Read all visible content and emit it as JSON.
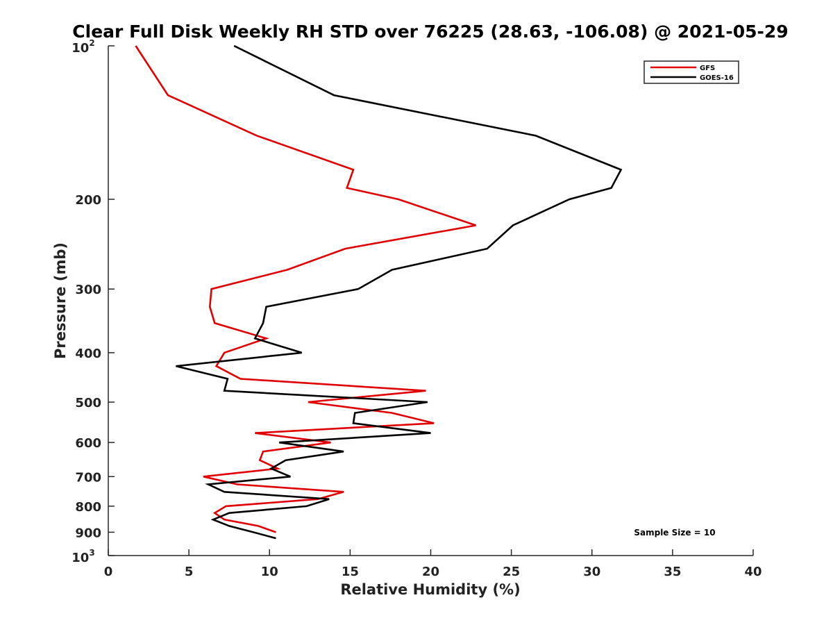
{
  "chart_data": {
    "type": "line",
    "title": "Clear Full Disk Weekly RH STD over 76225 (28.63, -106.08) @ 2021-05-29",
    "xlabel": "Relative Humidity (%)",
    "ylabel": "Pressure (mb)",
    "xlim": [
      0,
      40
    ],
    "ylim": [
      100,
      1000
    ],
    "y_scale": "log",
    "y_reversed": true,
    "x_ticks": [
      {
        "value": 0,
        "label": "0"
      },
      {
        "value": 5,
        "label": "5"
      },
      {
        "value": 10,
        "label": "10"
      },
      {
        "value": 15,
        "label": "15"
      },
      {
        "value": 20,
        "label": "20"
      },
      {
        "value": 25,
        "label": "25"
      },
      {
        "value": 30,
        "label": "30"
      },
      {
        "value": 35,
        "label": "35"
      },
      {
        "value": 40,
        "label": "40"
      }
    ],
    "y_ticks": [
      {
        "value": 100,
        "base": "10",
        "exp": "2"
      },
      {
        "value": 200,
        "label": "200"
      },
      {
        "value": 300,
        "label": "300"
      },
      {
        "value": 400,
        "label": "400"
      },
      {
        "value": 500,
        "label": "500"
      },
      {
        "value": 600,
        "label": "600"
      },
      {
        "value": 700,
        "label": "700"
      },
      {
        "value": 800,
        "label": "800"
      },
      {
        "value": 900,
        "label": "900"
      },
      {
        "value": 1000,
        "base": "10",
        "exp": "3"
      }
    ],
    "grid": false,
    "legend_position": "top-right",
    "annotation": "Sample Size = 10",
    "series": [
      {
        "name": "GFS",
        "color": "#e00000",
        "points": [
          [
            1.7,
            100
          ],
          [
            3.7,
            125
          ],
          [
            9.2,
            150
          ],
          [
            15.2,
            175
          ],
          [
            14.8,
            190
          ],
          [
            18.0,
            200
          ],
          [
            22.8,
            225
          ],
          [
            14.7,
            250
          ],
          [
            11.1,
            275
          ],
          [
            6.4,
            300
          ],
          [
            6.3,
            325
          ],
          [
            6.6,
            350
          ],
          [
            9.8,
            375
          ],
          [
            7.2,
            400
          ],
          [
            6.7,
            425
          ],
          [
            8.2,
            450
          ],
          [
            19.7,
            475
          ],
          [
            12.4,
            500
          ],
          [
            17.6,
            525
          ],
          [
            20.2,
            550
          ],
          [
            9.1,
            575
          ],
          [
            13.8,
            600
          ],
          [
            9.6,
            625
          ],
          [
            9.4,
            650
          ],
          [
            10.5,
            675
          ],
          [
            5.9,
            700
          ],
          [
            8.0,
            725
          ],
          [
            14.6,
            750
          ],
          [
            13.0,
            775
          ],
          [
            7.3,
            800
          ],
          [
            6.6,
            825
          ],
          [
            7.2,
            850
          ],
          [
            9.3,
            875
          ],
          [
            10.4,
            900
          ]
        ]
      },
      {
        "name": "GOES-16",
        "color": "#000000",
        "points": [
          [
            7.8,
            100
          ],
          [
            14.0,
            125
          ],
          [
            26.5,
            150
          ],
          [
            31.8,
            175
          ],
          [
            31.2,
            190
          ],
          [
            28.6,
            200
          ],
          [
            25.1,
            225
          ],
          [
            23.5,
            250
          ],
          [
            17.6,
            275
          ],
          [
            15.5,
            300
          ],
          [
            9.8,
            325
          ],
          [
            9.6,
            350
          ],
          [
            9.1,
            375
          ],
          [
            12.0,
            400
          ],
          [
            4.2,
            425
          ],
          [
            7.4,
            450
          ],
          [
            7.2,
            475
          ],
          [
            19.8,
            500
          ],
          [
            15.3,
            525
          ],
          [
            15.2,
            550
          ],
          [
            20.0,
            575
          ],
          [
            10.6,
            600
          ],
          [
            14.6,
            625
          ],
          [
            11.0,
            650
          ],
          [
            10.1,
            675
          ],
          [
            11.3,
            700
          ],
          [
            6.2,
            725
          ],
          [
            7.2,
            750
          ],
          [
            13.7,
            775
          ],
          [
            12.3,
            800
          ],
          [
            7.5,
            825
          ],
          [
            6.5,
            850
          ],
          [
            7.5,
            875
          ],
          [
            9.0,
            900
          ],
          [
            10.4,
            925
          ]
        ]
      }
    ]
  }
}
